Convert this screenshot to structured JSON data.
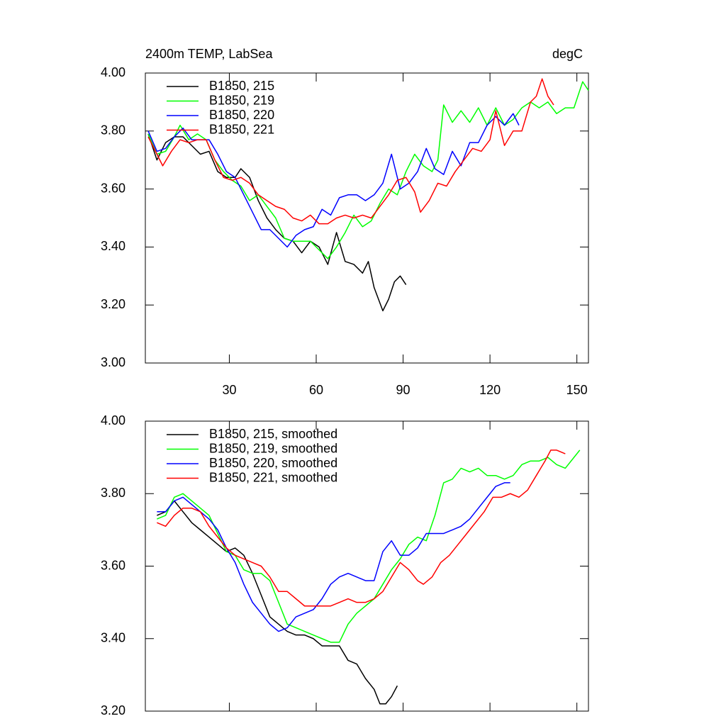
{
  "chart_data": [
    {
      "type": "line",
      "title": "2400m TEMP, LabSea",
      "unit_label": "degC",
      "xlim": [
        1,
        154
      ],
      "xticks": [
        30,
        60,
        90,
        120,
        150
      ],
      "ylim": [
        3.0,
        4.0
      ],
      "yticks": [
        {
          "value": 3.0,
          "label": "3.00"
        },
        {
          "value": 3.2,
          "label": "3.20"
        },
        {
          "value": 3.4,
          "label": "3.40"
        },
        {
          "value": 3.6,
          "label": "3.60"
        },
        {
          "value": 3.8,
          "label": "3.80"
        },
        {
          "value": 4.0,
          "label": "4.00"
        }
      ],
      "legend": "upper left",
      "series": [
        {
          "name": "B1850, 215",
          "color": "#000000",
          "x": [
            2,
            5,
            8,
            11,
            14,
            17,
            20,
            23,
            26,
            29,
            32,
            34,
            37,
            40,
            43,
            46,
            49,
            52,
            55,
            58,
            61,
            64,
            67,
            70,
            73,
            76,
            78,
            80,
            83,
            85,
            87,
            89,
            91
          ],
          "values": [
            3.79,
            3.7,
            3.76,
            3.78,
            3.78,
            3.75,
            3.72,
            3.73,
            3.66,
            3.64,
            3.64,
            3.67,
            3.64,
            3.56,
            3.5,
            3.46,
            3.43,
            3.42,
            3.38,
            3.42,
            3.4,
            3.34,
            3.45,
            3.35,
            3.34,
            3.31,
            3.35,
            3.26,
            3.18,
            3.22,
            3.28,
            3.3,
            3.27
          ]
        },
        {
          "name": "B1850, 219",
          "color": "#00ff00",
          "x": [
            2,
            5,
            8,
            11,
            13,
            16,
            19,
            22,
            25,
            28,
            31,
            34,
            37,
            40,
            43,
            46,
            49,
            52,
            55,
            58,
            61,
            64,
            67,
            70,
            73,
            76,
            79,
            82,
            85,
            88,
            91,
            94,
            97,
            100,
            102,
            104,
            107,
            110,
            113,
            116,
            119,
            122,
            125,
            128,
            131,
            134,
            137,
            140,
            143,
            146,
            149,
            152,
            154
          ],
          "values": [
            3.79,
            3.72,
            3.73,
            3.78,
            3.82,
            3.77,
            3.79,
            3.77,
            3.7,
            3.66,
            3.63,
            3.61,
            3.56,
            3.58,
            3.54,
            3.5,
            3.43,
            3.42,
            3.42,
            3.42,
            3.39,
            3.36,
            3.4,
            3.45,
            3.51,
            3.47,
            3.49,
            3.55,
            3.6,
            3.58,
            3.66,
            3.72,
            3.68,
            3.66,
            3.7,
            3.89,
            3.83,
            3.87,
            3.83,
            3.88,
            3.82,
            3.88,
            3.82,
            3.84,
            3.88,
            3.9,
            3.88,
            3.9,
            3.86,
            3.88,
            3.88,
            3.97,
            3.94
          ]
        },
        {
          "name": "B1850, 220",
          "color": "#0000ff",
          "x": [
            2,
            5,
            8,
            11,
            14,
            17,
            20,
            23,
            26,
            29,
            32,
            35,
            38,
            41,
            44,
            47,
            50,
            53,
            56,
            59,
            62,
            65,
            68,
            71,
            74,
            77,
            80,
            83,
            86,
            89,
            92,
            95,
            98,
            101,
            104,
            107,
            110,
            113,
            116,
            119,
            122,
            125,
            128,
            130
          ],
          "values": [
            3.8,
            3.73,
            3.74,
            3.78,
            3.81,
            3.77,
            3.77,
            3.77,
            3.72,
            3.66,
            3.64,
            3.58,
            3.52,
            3.46,
            3.46,
            3.43,
            3.4,
            3.44,
            3.46,
            3.47,
            3.53,
            3.51,
            3.57,
            3.58,
            3.58,
            3.56,
            3.58,
            3.62,
            3.72,
            3.6,
            3.62,
            3.66,
            3.74,
            3.67,
            3.65,
            3.73,
            3.68,
            3.76,
            3.76,
            3.82,
            3.85,
            3.82,
            3.86,
            3.82
          ]
        },
        {
          "name": "B1850, 221",
          "color": "#ff0000",
          "x": [
            2,
            5,
            7,
            10,
            13,
            16,
            19,
            22,
            25,
            28,
            31,
            34,
            37,
            40,
            43,
            46,
            49,
            52,
            55,
            58,
            61,
            64,
            67,
            70,
            73,
            76,
            79,
            82,
            85,
            88,
            91,
            94,
            96,
            99,
            102,
            105,
            108,
            111,
            114,
            117,
            120,
            122,
            125,
            128,
            131,
            134,
            136,
            138,
            140,
            142
          ],
          "values": [
            3.78,
            3.72,
            3.68,
            3.73,
            3.77,
            3.76,
            3.77,
            3.77,
            3.7,
            3.64,
            3.63,
            3.64,
            3.62,
            3.58,
            3.56,
            3.54,
            3.53,
            3.5,
            3.49,
            3.51,
            3.48,
            3.48,
            3.5,
            3.51,
            3.5,
            3.51,
            3.5,
            3.54,
            3.58,
            3.63,
            3.64,
            3.59,
            3.52,
            3.56,
            3.62,
            3.61,
            3.66,
            3.7,
            3.74,
            3.73,
            3.77,
            3.87,
            3.75,
            3.8,
            3.8,
            3.9,
            3.92,
            3.98,
            3.92,
            3.89
          ]
        }
      ]
    },
    {
      "type": "line",
      "xlim": [
        1,
        154
      ],
      "xticks": [
        30,
        60,
        90,
        120,
        150
      ],
      "ylim": [
        3.2,
        4.0
      ],
      "yticks": [
        {
          "value": 3.2,
          "label": "3.20"
        },
        {
          "value": 3.4,
          "label": "3.40"
        },
        {
          "value": 3.6,
          "label": "3.60"
        },
        {
          "value": 3.8,
          "label": "3.80"
        },
        {
          "value": 4.0,
          "label": "4.00"
        }
      ],
      "legend": "upper left",
      "series": [
        {
          "name": "B1850, 215, smoothed",
          "color": "#000000",
          "x": [
            5,
            8,
            11,
            14,
            17,
            20,
            23,
            26,
            29,
            32,
            35,
            38,
            41,
            44,
            47,
            50,
            53,
            56,
            59,
            62,
            65,
            68,
            71,
            74,
            77,
            80,
            82,
            84,
            86,
            88
          ],
          "values": [
            3.74,
            3.75,
            3.78,
            3.75,
            3.72,
            3.7,
            3.68,
            3.66,
            3.64,
            3.65,
            3.63,
            3.58,
            3.52,
            3.46,
            3.44,
            3.42,
            3.41,
            3.41,
            3.4,
            3.38,
            3.38,
            3.38,
            3.34,
            3.33,
            3.29,
            3.26,
            3.22,
            3.22,
            3.24,
            3.27
          ]
        },
        {
          "name": "B1850, 219, smoothed",
          "color": "#00ff00",
          "x": [
            5,
            8,
            11,
            14,
            17,
            20,
            23,
            26,
            29,
            32,
            35,
            38,
            41,
            44,
            47,
            50,
            53,
            56,
            59,
            62,
            65,
            68,
            71,
            74,
            77,
            80,
            83,
            86,
            89,
            92,
            95,
            98,
            101,
            104,
            107,
            110,
            113,
            116,
            119,
            122,
            125,
            128,
            131,
            134,
            137,
            140,
            143,
            146,
            149,
            151
          ],
          "values": [
            3.73,
            3.74,
            3.79,
            3.8,
            3.78,
            3.76,
            3.74,
            3.69,
            3.64,
            3.63,
            3.59,
            3.58,
            3.58,
            3.56,
            3.5,
            3.44,
            3.43,
            3.42,
            3.41,
            3.4,
            3.39,
            3.39,
            3.44,
            3.47,
            3.49,
            3.51,
            3.55,
            3.59,
            3.62,
            3.66,
            3.68,
            3.67,
            3.74,
            3.83,
            3.84,
            3.87,
            3.86,
            3.87,
            3.85,
            3.85,
            3.84,
            3.85,
            3.88,
            3.89,
            3.89,
            3.9,
            3.88,
            3.87,
            3.9,
            3.92
          ]
        },
        {
          "name": "B1850, 220, smoothed",
          "color": "#0000ff",
          "x": [
            5,
            8,
            11,
            14,
            17,
            20,
            23,
            26,
            29,
            32,
            35,
            38,
            41,
            44,
            47,
            50,
            53,
            56,
            59,
            62,
            65,
            68,
            71,
            74,
            77,
            80,
            83,
            86,
            89,
            92,
            95,
            98,
            101,
            104,
            107,
            110,
            113,
            116,
            119,
            122,
            125,
            127
          ],
          "values": [
            3.75,
            3.75,
            3.78,
            3.79,
            3.77,
            3.75,
            3.73,
            3.7,
            3.65,
            3.61,
            3.55,
            3.5,
            3.47,
            3.44,
            3.42,
            3.43,
            3.46,
            3.47,
            3.48,
            3.51,
            3.55,
            3.57,
            3.58,
            3.57,
            3.56,
            3.56,
            3.64,
            3.67,
            3.63,
            3.63,
            3.65,
            3.69,
            3.69,
            3.69,
            3.7,
            3.71,
            3.73,
            3.76,
            3.79,
            3.82,
            3.83,
            3.83
          ]
        },
        {
          "name": "B1850, 221, smoothed",
          "color": "#ff0000",
          "x": [
            5,
            8,
            11,
            14,
            17,
            20,
            23,
            26,
            29,
            32,
            35,
            38,
            41,
            44,
            47,
            50,
            53,
            56,
            59,
            62,
            65,
            68,
            71,
            74,
            77,
            80,
            83,
            86,
            89,
            92,
            95,
            97,
            100,
            103,
            106,
            109,
            112,
            115,
            118,
            121,
            124,
            127,
            130,
            133,
            136,
            139,
            141,
            143,
            146
          ],
          "values": [
            3.72,
            3.71,
            3.74,
            3.76,
            3.76,
            3.75,
            3.71,
            3.68,
            3.65,
            3.63,
            3.62,
            3.61,
            3.6,
            3.57,
            3.53,
            3.53,
            3.51,
            3.49,
            3.49,
            3.49,
            3.49,
            3.5,
            3.51,
            3.5,
            3.5,
            3.51,
            3.53,
            3.57,
            3.61,
            3.59,
            3.56,
            3.55,
            3.57,
            3.61,
            3.63,
            3.66,
            3.69,
            3.72,
            3.75,
            3.79,
            3.79,
            3.8,
            3.79,
            3.81,
            3.85,
            3.89,
            3.92,
            3.92,
            3.91
          ]
        }
      ]
    }
  ]
}
